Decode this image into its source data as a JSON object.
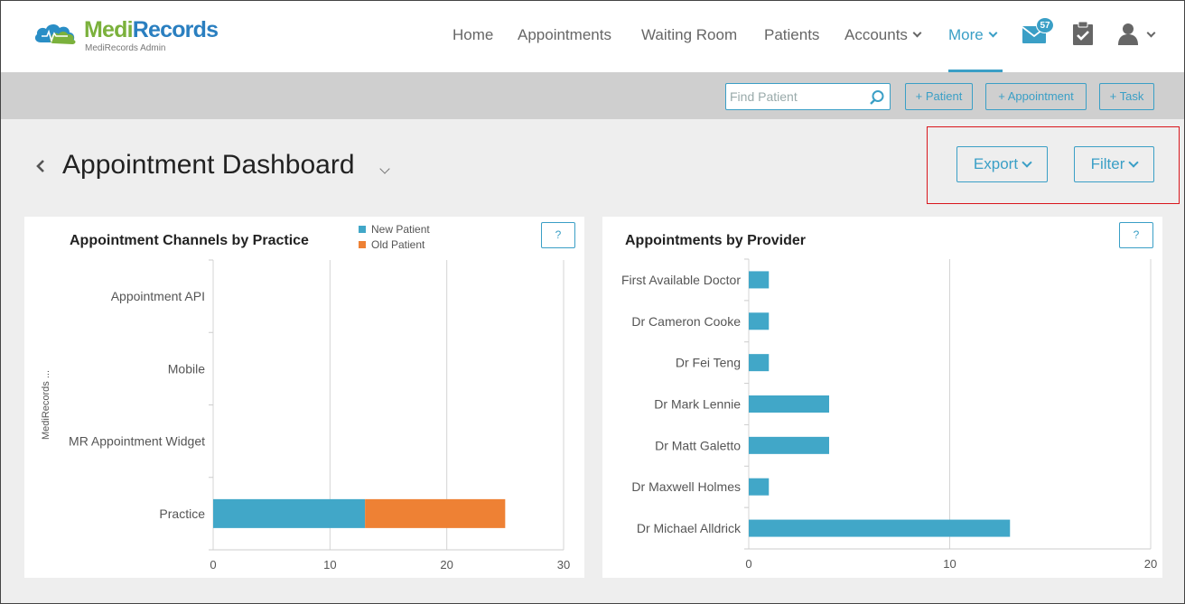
{
  "brand": {
    "name_green": "Medi",
    "name_blue": "Records",
    "subtitle": "MediRecords Admin"
  },
  "nav": {
    "items": [
      {
        "label": "Home",
        "has_caret": false,
        "active": false
      },
      {
        "label": "Appointments",
        "has_caret": false,
        "active": false
      },
      {
        "label": "Waiting Room",
        "has_caret": false,
        "active": false
      },
      {
        "label": "Patients",
        "has_caret": false,
        "active": false
      },
      {
        "label": "Accounts",
        "has_caret": true,
        "active": false
      },
      {
        "label": "More",
        "has_caret": true,
        "active": true
      }
    ],
    "mail_badge": "57",
    "icons": [
      "mail-icon",
      "clipboard-check-icon",
      "user-icon"
    ]
  },
  "actionbar": {
    "search_placeholder": "Find Patient",
    "add_patient": "+ Patient",
    "add_appointment": "+ Appointment",
    "add_task": "+ Task"
  },
  "page": {
    "title": "Appointment Dashboard",
    "export_label": "Export",
    "filter_label": "Filter"
  },
  "colors": {
    "accent": "#3a9fc6",
    "new_patient": "#41a7c8",
    "old_patient": "#ee8134",
    "highlight": "#d9161c"
  },
  "chart_data": [
    {
      "type": "bar",
      "orientation": "horizontal",
      "stacked": true,
      "title": "Appointment Channels by Practice",
      "ylabel": "MediRecords ...",
      "xlabel": "",
      "categories": [
        "Appointment API",
        "Mobile",
        "MR Appointment Widget",
        "Practice"
      ],
      "series": [
        {
          "name": "New Patient",
          "color": "#41a7c8",
          "values": [
            0,
            0,
            0,
            13
          ]
        },
        {
          "name": "Old Patient",
          "color": "#ee8134",
          "values": [
            0,
            0,
            0,
            12
          ]
        }
      ],
      "xlim": [
        0,
        30
      ],
      "xticks": [
        0,
        10,
        20,
        30
      ],
      "grid": true,
      "legend": "top-center",
      "help_label": "?"
    },
    {
      "type": "bar",
      "orientation": "horizontal",
      "title": "Appointments by Provider",
      "xlabel": "",
      "ylabel": "",
      "categories": [
        "First Available Doctor",
        "Dr Cameron Cooke",
        "Dr Fei Teng",
        "Dr Mark Lennie",
        "Dr Matt Galetto",
        "Dr Maxwell Holmes",
        "Dr Michael Alldrick"
      ],
      "values": [
        1,
        1,
        1,
        4,
        4,
        1,
        13
      ],
      "color": "#41a7c8",
      "xlim": [
        0,
        20
      ],
      "xticks": [
        0,
        10,
        20
      ],
      "grid": true,
      "legend": "none",
      "help_label": "?"
    }
  ]
}
